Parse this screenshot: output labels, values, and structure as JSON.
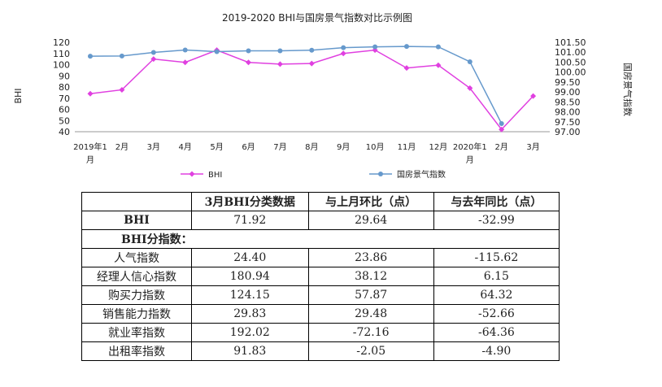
{
  "chart_data": {
    "type": "line",
    "title": "2019-2020 BHI与国房景气指数对比示例图",
    "categories": [
      "2019年1月",
      "2月",
      "3月",
      "4月",
      "5月",
      "6月",
      "7月",
      "8月",
      "9月",
      "10月",
      "11月",
      "12月",
      "2020年1月",
      "2月",
      "3月"
    ],
    "ylabel_left": "BHI",
    "ylabel_right": "国房景气指数",
    "ylim_left": [
      40,
      120
    ],
    "yticks_left": [
      "40",
      "50",
      "60",
      "70",
      "80",
      "90",
      "100",
      "110",
      "120"
    ],
    "ylim_right": [
      97.0,
      101.5
    ],
    "yticks_right": [
      "97.00",
      "97.50",
      "98.00",
      "98.50",
      "99.00",
      "99.50",
      "100.00",
      "100.50",
      "101.00",
      "101.50"
    ],
    "grid": false,
    "legend": "bottom",
    "series": [
      {
        "name": "BHI",
        "axis": "left",
        "color": "#e040e0",
        "values": [
          74,
          77.5,
          105,
          102,
          113,
          102,
          100.5,
          101,
          110,
          113,
          97,
          99.5,
          79,
          42,
          71.92
        ]
      },
      {
        "name": "国房景气指数",
        "axis": "right",
        "color": "#6699cc",
        "values": [
          100.8,
          100.81,
          100.99,
          101.11,
          101.03,
          101.07,
          101.07,
          101.1,
          101.23,
          101.27,
          101.29,
          101.27,
          100.52,
          97.41,
          null
        ]
      }
    ]
  },
  "table": {
    "header": [
      "",
      "3月BHI分类数据",
      "与上月环比（点）",
      "与去年同比（点）"
    ],
    "bhi_row": [
      "BHI",
      "71.92",
      "29.64",
      "-32.99"
    ],
    "section_label": "BHI分指数：",
    "rows": [
      [
        "人气指数",
        "24.40",
        "23.86",
        "-115.62"
      ],
      [
        "经理人信心指数",
        "180.94",
        "38.12",
        "6.15"
      ],
      [
        "购买力指数",
        "124.15",
        "57.87",
        "64.32"
      ],
      [
        "销售能力指数",
        "29.83",
        "29.48",
        "-52.66"
      ],
      [
        "就业率指数",
        "192.02",
        "-72.16",
        "-64.36"
      ],
      [
        "出租率指数",
        "91.83",
        "-2.05",
        "-4.90"
      ]
    ]
  }
}
